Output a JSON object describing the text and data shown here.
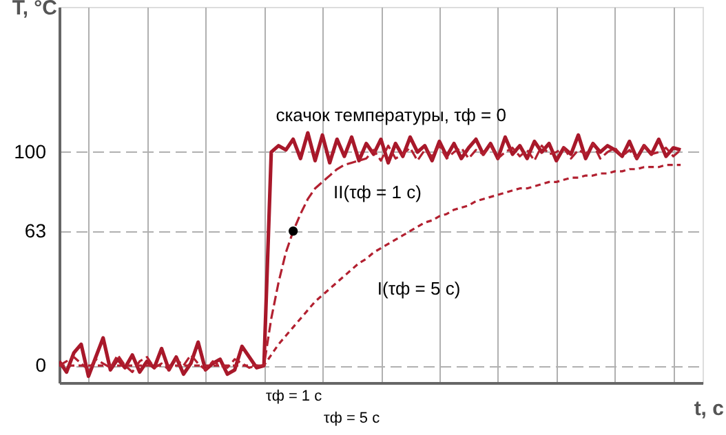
{
  "chart_data": {
    "type": "line",
    "xlabel": "t, с",
    "ylabel": "T, °С",
    "categories": [
      null,
      null,
      null,
      null,
      null,
      null,
      null,
      null,
      null,
      null,
      null,
      null,
      null,
      null,
      null,
      null,
      null,
      null,
      null,
      null,
      null,
      null,
      null,
      null,
      null,
      null,
      null,
      null,
      null,
      null,
      null,
      null,
      null,
      null,
      null,
      null,
      null,
      null,
      null,
      null,
      null,
      null,
      null,
      null,
      null,
      null,
      null,
      null,
      null,
      null,
      null,
      null,
      null,
      null,
      null,
      null,
      null,
      null,
      null,
      null,
      null,
      null,
      null,
      null,
      null,
      null,
      null,
      null,
      null,
      null,
      null,
      null,
      null,
      null,
      null,
      null,
      null,
      null,
      null,
      null,
      null,
      null,
      null,
      null,
      null,
      null,
      null,
      null,
      null
    ],
    "ylim": [
      -8,
      168
    ],
    "yticks": [
      0,
      63,
      100
    ],
    "tick_labels": "y",
    "grid": true,
    "series": [
      {
        "name": "скачок температуры, τф = 0",
        "color": "#a8182a",
        "line_style": "solid",
        "values": [
          2,
          -3,
          6,
          10,
          -5,
          4,
          13,
          -2,
          3,
          -1,
          5,
          -3,
          2,
          -1,
          8,
          -2,
          4,
          -4,
          1,
          11,
          -2,
          1,
          3,
          -4,
          -2,
          9,
          4,
          -1,
          0,
          100,
          103,
          101,
          106,
          97,
          109,
          96,
          108,
          95,
          106,
          98,
          107,
          96,
          104,
          99,
          106,
          95,
          104,
          98,
          107,
          100,
          103,
          96,
          105,
          98,
          104,
          97,
          102,
          106,
          99,
          104,
          97,
          107,
          99,
          103,
          97,
          105,
          100,
          104,
          96,
          102,
          99,
          108,
          97,
          104,
          100,
          103,
          101,
          98,
          105,
          97,
          103,
          99,
          106,
          98,
          102,
          101,
          null,
          null,
          null
        ]
      },
      {
        "name": "II(τф = 1 с)",
        "color": "#b22030",
        "line_style": "dashed",
        "values": [
          0,
          2,
          4,
          1,
          -2,
          3,
          1,
          -1,
          5,
          0,
          -3,
          2,
          4,
          -1,
          1,
          -2,
          3,
          0,
          5,
          1,
          -2,
          2,
          0,
          -1,
          3,
          1,
          -1,
          0,
          0,
          22,
          39,
          53,
          63,
          71,
          78,
          83,
          86,
          89,
          92,
          94,
          95,
          96,
          97,
          101,
          96,
          103,
          97,
          99,
          102,
          96,
          101,
          98,
          103,
          97,
          100,
          102,
          97,
          101,
          99,
          103,
          97,
          100,
          102,
          98,
          101,
          96,
          103,
          99,
          100,
          102,
          97,
          101,
          99,
          104,
          97,
          100,
          102,
          98,
          101,
          97,
          103,
          99,
          100,
          102,
          98,
          101,
          null,
          null,
          null
        ]
      },
      {
        "name": "I(τф = 5 с)",
        "color": "#b22030",
        "line_style": "dotted",
        "values": [
          0,
          0,
          0,
          0,
          0,
          0,
          0,
          0,
          0,
          0,
          0,
          0,
          0,
          0,
          0,
          0,
          0,
          0,
          0,
          0,
          0,
          0,
          0,
          0,
          0,
          0,
          0,
          0,
          0,
          5,
          10,
          14,
          18,
          22,
          26,
          30,
          33,
          36,
          39,
          42,
          45,
          48,
          50,
          53,
          55,
          57,
          59,
          61,
          63,
          65,
          67,
          68,
          70,
          71,
          73,
          74,
          75,
          77,
          78,
          79,
          80,
          81,
          82,
          83,
          83,
          84,
          85,
          86,
          86,
          87,
          88,
          88,
          89,
          89,
          90,
          90,
          91,
          91,
          92,
          92,
          93,
          93,
          93,
          94,
          94,
          94,
          null,
          null,
          null
        ]
      },
      {
        "type": "scatter",
        "marker": "circle",
        "color": "#000000",
        "values": [
          null,
          null,
          null,
          null,
          null,
          null,
          null,
          null,
          null,
          null,
          null,
          null,
          null,
          null,
          null,
          null,
          null,
          null,
          null,
          null,
          null,
          null,
          null,
          null,
          null,
          null,
          null,
          null,
          null,
          null,
          null,
          null,
          63,
          null,
          null,
          null,
          null,
          null,
          null,
          null,
          null,
          null,
          null,
          null,
          null,
          null,
          null,
          null,
          null,
          null,
          null,
          null,
          null,
          null,
          null,
          null,
          null,
          null,
          null,
          null,
          null,
          null,
          null,
          null,
          null,
          null,
          null,
          null,
          null,
          null,
          null,
          null,
          null,
          null,
          null,
          null,
          null,
          null,
          null,
          null,
          null,
          null,
          null,
          null,
          null,
          null,
          null,
          null,
          null
        ]
      }
    ],
    "annotations": [
      "τф = 1 с",
      "τф = 5 с"
    ]
  }
}
